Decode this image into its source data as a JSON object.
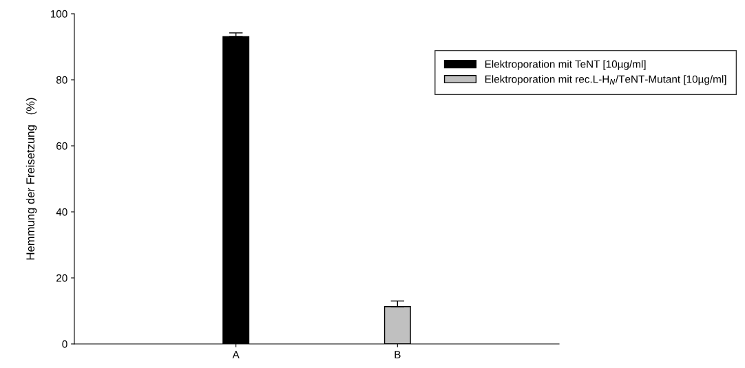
{
  "chart_data": {
    "type": "bar",
    "ylabel": "Hemmung der Freisetzung   (%)",
    "categories": [
      "A",
      "B"
    ],
    "series": [
      {
        "name": "Elektroporation mit TeNT [10µg/ml]",
        "color": "#000000",
        "values": [
          93.1,
          null
        ],
        "errors": [
          1.1,
          null
        ]
      },
      {
        "name": "Elektroporation mit rec.L-H$_{N}$/TeNT-Mutant [10µg/ml]",
        "color": "#c0c0c0",
        "values": [
          null,
          11.3
        ],
        "errors": [
          null,
          1.7
        ]
      }
    ],
    "ylim": [
      0,
      100
    ],
    "yticks": [
      0,
      20,
      40,
      60,
      80,
      100
    ],
    "grid": false,
    "legend": "top right"
  }
}
